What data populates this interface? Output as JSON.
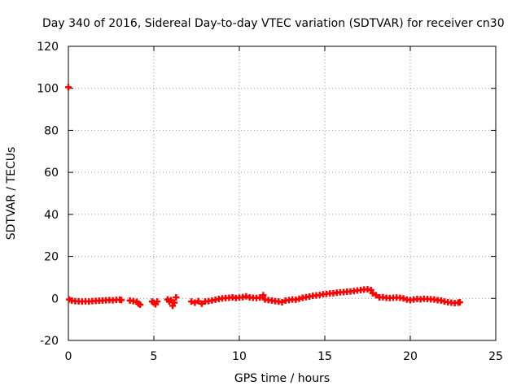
{
  "chart_data": {
    "type": "scatter",
    "title": "Day 340 of 2016, Sidereal Day-to-day VTEC variation (SDTVAR) for receiver cn30",
    "xlabel": "GPS time / hours",
    "ylabel": "SDTVAR / TECUs",
    "xlim": [
      0,
      25
    ],
    "ylim": [
      -20,
      120
    ],
    "xticks": [
      0,
      5,
      10,
      15,
      20,
      25
    ],
    "yticks": [
      -20,
      0,
      20,
      40,
      60,
      80,
      100,
      120
    ],
    "xtick_labels": [
      "0",
      "5",
      "10",
      "15",
      "20",
      "25"
    ],
    "ytick_labels": [
      "-20",
      "0",
      "20",
      "40",
      "60",
      "80",
      "100",
      "120"
    ],
    "grid": true,
    "marker": "plus",
    "color": "#ff0000",
    "series": [
      {
        "name": "SDTVAR",
        "points": [
          [
            0.0,
            100.5
          ],
          [
            0.05,
            -0.5
          ],
          [
            0.2,
            -1.0
          ],
          [
            0.4,
            -1.3
          ],
          [
            0.6,
            -1.4
          ],
          [
            0.8,
            -1.5
          ],
          [
            1.0,
            -1.4
          ],
          [
            1.2,
            -1.5
          ],
          [
            1.4,
            -1.3
          ],
          [
            1.6,
            -1.2
          ],
          [
            1.8,
            -1.1
          ],
          [
            2.0,
            -1.0
          ],
          [
            2.2,
            -0.9
          ],
          [
            2.4,
            -0.8
          ],
          [
            2.6,
            -0.9
          ],
          [
            2.8,
            -0.7
          ],
          [
            3.0,
            -0.6
          ],
          [
            3.1,
            -0.8
          ],
          [
            3.6,
            -1.0
          ],
          [
            3.8,
            -1.3
          ],
          [
            4.0,
            -1.6
          ],
          [
            4.1,
            -2.5
          ],
          [
            4.2,
            -3.0
          ],
          [
            4.9,
            -1.5
          ],
          [
            5.0,
            -2.0
          ],
          [
            5.1,
            -2.8
          ],
          [
            5.2,
            -1.5
          ],
          [
            5.8,
            -0.5
          ],
          [
            5.9,
            -1.5
          ],
          [
            6.0,
            -0.8
          ],
          [
            6.1,
            -3.5
          ],
          [
            6.2,
            -2.0
          ],
          [
            6.3,
            0.5
          ],
          [
            7.2,
            -1.5
          ],
          [
            7.4,
            -2.0
          ],
          [
            7.6,
            -1.3
          ],
          [
            7.8,
            -2.5
          ],
          [
            8.0,
            -1.5
          ],
          [
            8.2,
            -1.3
          ],
          [
            8.4,
            -1.0
          ],
          [
            8.6,
            -0.6
          ],
          [
            8.8,
            -0.3
          ],
          [
            9.0,
            0.0
          ],
          [
            9.2,
            0.2
          ],
          [
            9.4,
            0.3
          ],
          [
            9.6,
            0.5
          ],
          [
            9.8,
            0.2
          ],
          [
            10.0,
            0.4
          ],
          [
            10.2,
            0.6
          ],
          [
            10.4,
            1.0
          ],
          [
            10.6,
            0.5
          ],
          [
            10.8,
            0.3
          ],
          [
            11.0,
            0.2
          ],
          [
            11.2,
            0.4
          ],
          [
            11.4,
            1.5
          ],
          [
            11.5,
            -0.5
          ],
          [
            11.7,
            -0.8
          ],
          [
            11.9,
            -1.0
          ],
          [
            12.1,
            -1.3
          ],
          [
            12.3,
            -1.5
          ],
          [
            12.5,
            -1.8
          ],
          [
            12.7,
            -1.0
          ],
          [
            12.9,
            -0.8
          ],
          [
            13.1,
            -0.5
          ],
          [
            13.3,
            -0.6
          ],
          [
            13.5,
            -0.2
          ],
          [
            13.7,
            0.3
          ],
          [
            13.9,
            0.6
          ],
          [
            14.1,
            0.9
          ],
          [
            14.3,
            1.2
          ],
          [
            14.5,
            1.4
          ],
          [
            14.7,
            1.6
          ],
          [
            14.9,
            2.0
          ],
          [
            15.1,
            2.2
          ],
          [
            15.3,
            2.4
          ],
          [
            15.5,
            2.5
          ],
          [
            15.7,
            2.7
          ],
          [
            15.9,
            2.9
          ],
          [
            16.1,
            3.0
          ],
          [
            16.3,
            3.2
          ],
          [
            16.5,
            3.3
          ],
          [
            16.7,
            3.5
          ],
          [
            16.9,
            3.8
          ],
          [
            17.1,
            4.0
          ],
          [
            17.3,
            4.2
          ],
          [
            17.5,
            4.3
          ],
          [
            17.7,
            4.0
          ],
          [
            17.8,
            2.5
          ],
          [
            18.0,
            1.5
          ],
          [
            18.2,
            0.5
          ],
          [
            18.4,
            0.6
          ],
          [
            18.6,
            0.3
          ],
          [
            18.8,
            0.2
          ],
          [
            19.0,
            0.3
          ],
          [
            19.2,
            0.4
          ],
          [
            19.4,
            0.3
          ],
          [
            19.6,
            0.0
          ],
          [
            19.8,
            -0.5
          ],
          [
            20.0,
            -0.8
          ],
          [
            20.2,
            -0.5
          ],
          [
            20.4,
            -0.3
          ],
          [
            20.6,
            -0.4
          ],
          [
            20.8,
            -0.2
          ],
          [
            21.0,
            -0.3
          ],
          [
            21.2,
            -0.4
          ],
          [
            21.4,
            -0.5
          ],
          [
            21.6,
            -0.8
          ],
          [
            21.8,
            -1.0
          ],
          [
            22.0,
            -1.5
          ],
          [
            22.2,
            -1.8
          ],
          [
            22.4,
            -2.0
          ],
          [
            22.6,
            -2.2
          ],
          [
            22.8,
            -2.0
          ],
          [
            22.9,
            -1.8
          ]
        ]
      }
    ]
  }
}
